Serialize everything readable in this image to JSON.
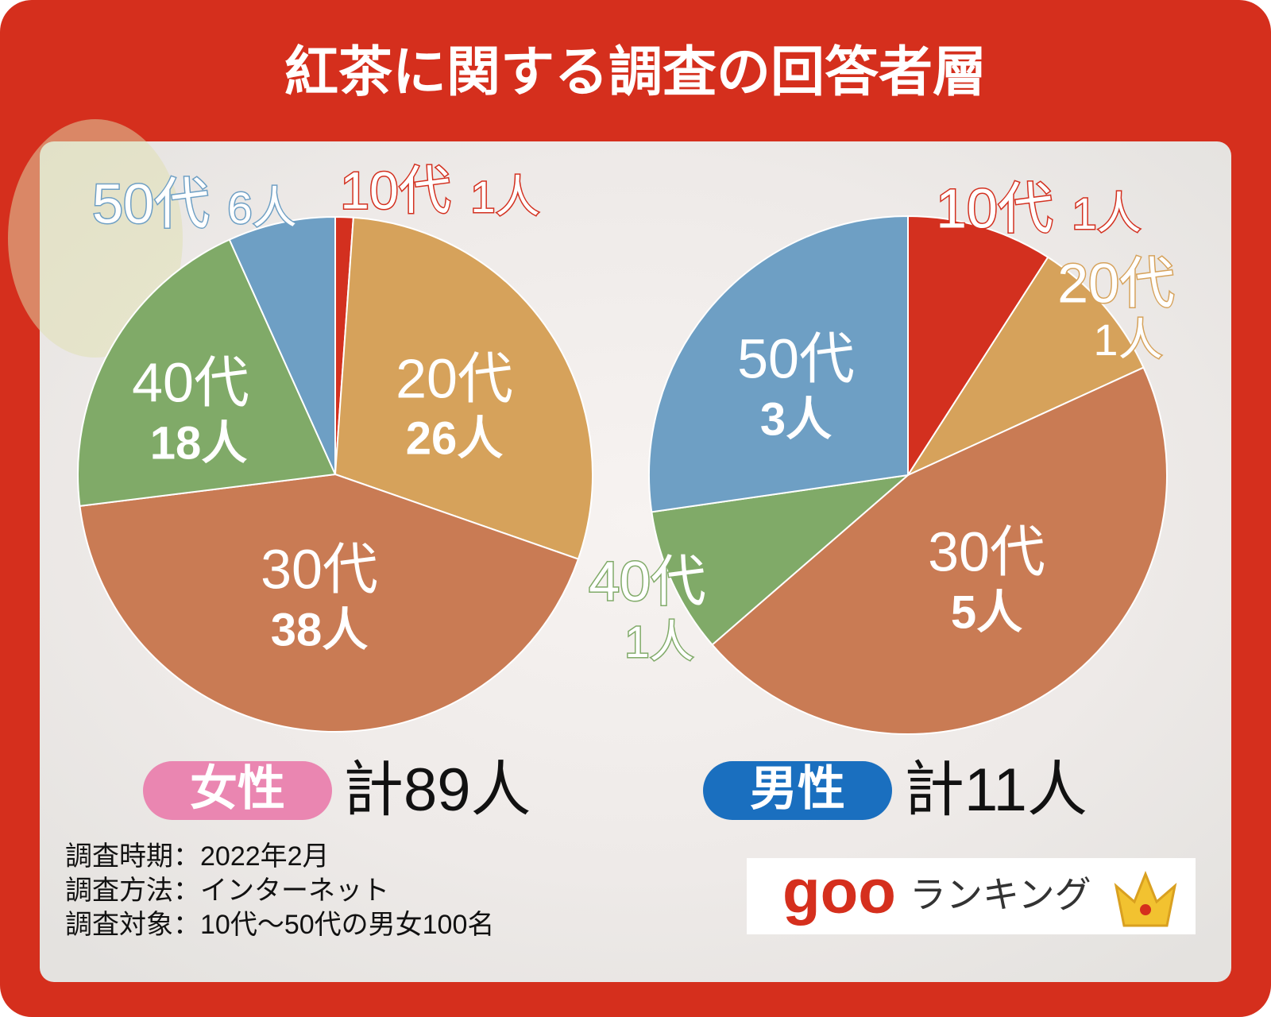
{
  "title": "紅茶に関する調査の回答者層",
  "chart_data": [
    {
      "type": "pie",
      "title": "女性",
      "total_label": "計89人",
      "categories": [
        "10代",
        "20代",
        "30代",
        "40代",
        "50代"
      ],
      "values": [
        1,
        26,
        38,
        18,
        6
      ],
      "value_labels": [
        "1人",
        "26人",
        "38人",
        "18人",
        "6人"
      ],
      "colors": [
        "#d3301f",
        "#d6a25b",
        "#c97b54",
        "#80aa68",
        "#6e9fc4"
      ],
      "badge_color": "#ea86b1"
    },
    {
      "type": "pie",
      "title": "男性",
      "total_label": "計11人",
      "categories": [
        "10代",
        "20代",
        "30代",
        "40代",
        "50代"
      ],
      "values": [
        1,
        1,
        5,
        1,
        3
      ],
      "value_labels": [
        "1人",
        "1人",
        "5人",
        "1人",
        "3人"
      ],
      "colors": [
        "#d3301f",
        "#d6a25b",
        "#c97b54",
        "#80aa68",
        "#6e9fc4"
      ],
      "badge_color": "#1a6fbf"
    }
  ],
  "notes": [
    "調査時期：2022年2月",
    "調査方法：インターネット",
    "調査対象：10代～50代の男女100名"
  ],
  "logo": {
    "brand": "goo",
    "text": "ランキング"
  }
}
